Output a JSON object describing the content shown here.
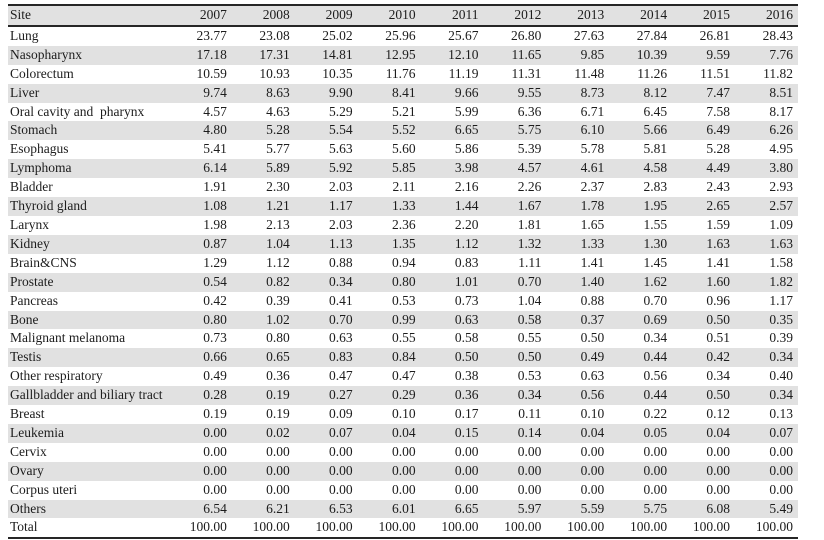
{
  "colors": {
    "stripe_gray": "#e1e1e1",
    "rule_black": "#262626",
    "text": "#1c1c1c",
    "background": "#ffffff"
  },
  "chart_data": {
    "type": "table",
    "title": "",
    "description": "Percentage distribution by cancer site per year",
    "columns": [
      "Site",
      "2007",
      "2008",
      "2009",
      "2010",
      "2011",
      "2012",
      "2013",
      "2014",
      "2015",
      "2016"
    ],
    "rows": [
      {
        "site": "Lung",
        "values": [
          "23.77",
          "23.08",
          "25.02",
          "25.96",
          "25.67",
          "26.80",
          "27.63",
          "27.84",
          "26.81",
          "28.43"
        ]
      },
      {
        "site": "Nasopharynx",
        "values": [
          "17.18",
          "17.31",
          "14.81",
          "12.95",
          "12.10",
          "11.65",
          "9.85",
          "10.39",
          "9.59",
          "7.76"
        ]
      },
      {
        "site": "Colorectum",
        "values": [
          "10.59",
          "10.93",
          "10.35",
          "11.76",
          "11.19",
          "11.31",
          "11.48",
          "11.26",
          "11.51",
          "11.82"
        ]
      },
      {
        "site": "Liver",
        "values": [
          "9.74",
          "8.63",
          "9.90",
          "8.41",
          "9.66",
          "9.55",
          "8.73",
          "8.12",
          "7.47",
          "8.51"
        ]
      },
      {
        "site": "Oral cavity and  pharynx",
        "values": [
          "4.57",
          "4.63",
          "5.29",
          "5.21",
          "5.99",
          "6.36",
          "6.71",
          "6.45",
          "7.58",
          "8.17"
        ]
      },
      {
        "site": "Stomach",
        "values": [
          "4.80",
          "5.28",
          "5.54",
          "5.52",
          "6.65",
          "5.75",
          "6.10",
          "5.66",
          "6.49",
          "6.26"
        ]
      },
      {
        "site": "Esophagus",
        "values": [
          "5.41",
          "5.77",
          "5.63",
          "5.60",
          "5.86",
          "5.39",
          "5.78",
          "5.81",
          "5.28",
          "4.95"
        ]
      },
      {
        "site": "Lymphoma",
        "values": [
          "6.14",
          "5.89",
          "5.92",
          "5.85",
          "3.98",
          "4.57",
          "4.61",
          "4.58",
          "4.49",
          "3.80"
        ]
      },
      {
        "site": "Bladder",
        "values": [
          "1.91",
          "2.30",
          "2.03",
          "2.11",
          "2.16",
          "2.26",
          "2.37",
          "2.83",
          "2.43",
          "2.93"
        ]
      },
      {
        "site": "Thyroid gland",
        "values": [
          "1.08",
          "1.21",
          "1.17",
          "1.33",
          "1.44",
          "1.67",
          "1.78",
          "1.95",
          "2.65",
          "2.57"
        ]
      },
      {
        "site": "Larynx",
        "values": [
          "1.98",
          "2.13",
          "2.03",
          "2.36",
          "2.20",
          "1.81",
          "1.65",
          "1.55",
          "1.59",
          "1.09"
        ]
      },
      {
        "site": "Kidney",
        "values": [
          "0.87",
          "1.04",
          "1.13",
          "1.35",
          "1.12",
          "1.32",
          "1.33",
          "1.30",
          "1.63",
          "1.63"
        ]
      },
      {
        "site": "Brain&CNS",
        "values": [
          "1.29",
          "1.12",
          "0.88",
          "0.94",
          "0.83",
          "1.11",
          "1.41",
          "1.45",
          "1.41",
          "1.58"
        ]
      },
      {
        "site": "Prostate",
        "values": [
          "0.54",
          "0.82",
          "0.34",
          "0.80",
          "1.01",
          "0.70",
          "1.40",
          "1.62",
          "1.60",
          "1.82"
        ]
      },
      {
        "site": "Pancreas",
        "values": [
          "0.42",
          "0.39",
          "0.41",
          "0.53",
          "0.73",
          "1.04",
          "0.88",
          "0.70",
          "0.96",
          "1.17"
        ]
      },
      {
        "site": "Bone",
        "values": [
          "0.80",
          "1.02",
          "0.70",
          "0.99",
          "0.63",
          "0.58",
          "0.37",
          "0.69",
          "0.50",
          "0.35"
        ]
      },
      {
        "site": "Malignant melanoma",
        "values": [
          "0.73",
          "0.80",
          "0.63",
          "0.55",
          "0.58",
          "0.55",
          "0.50",
          "0.34",
          "0.51",
          "0.39"
        ]
      },
      {
        "site": "Testis",
        "values": [
          "0.66",
          "0.65",
          "0.83",
          "0.84",
          "0.50",
          "0.50",
          "0.49",
          "0.44",
          "0.42",
          "0.34"
        ]
      },
      {
        "site": "Other respiratory",
        "values": [
          "0.49",
          "0.36",
          "0.47",
          "0.47",
          "0.38",
          "0.53",
          "0.63",
          "0.56",
          "0.34",
          "0.40"
        ]
      },
      {
        "site": "Gallbladder and biliary tract",
        "values": [
          "0.28",
          "0.19",
          "0.27",
          "0.29",
          "0.36",
          "0.34",
          "0.56",
          "0.44",
          "0.50",
          "0.34"
        ]
      },
      {
        "site": "Breast",
        "values": [
          "0.19",
          "0.19",
          "0.09",
          "0.10",
          "0.17",
          "0.11",
          "0.10",
          "0.22",
          "0.12",
          "0.13"
        ]
      },
      {
        "site": "Leukemia",
        "values": [
          "0.00",
          "0.02",
          "0.07",
          "0.04",
          "0.15",
          "0.14",
          "0.04",
          "0.05",
          "0.04",
          "0.07"
        ]
      },
      {
        "site": "Cervix",
        "values": [
          "0.00",
          "0.00",
          "0.00",
          "0.00",
          "0.00",
          "0.00",
          "0.00",
          "0.00",
          "0.00",
          "0.00"
        ]
      },
      {
        "site": "Ovary",
        "values": [
          "0.00",
          "0.00",
          "0.00",
          "0.00",
          "0.00",
          "0.00",
          "0.00",
          "0.00",
          "0.00",
          "0.00"
        ]
      },
      {
        "site": "Corpus uteri",
        "values": [
          "0.00",
          "0.00",
          "0.00",
          "0.00",
          "0.00",
          "0.00",
          "0.00",
          "0.00",
          "0.00",
          "0.00"
        ]
      },
      {
        "site": "Others",
        "values": [
          "6.54",
          "6.21",
          "6.53",
          "6.01",
          "6.65",
          "5.97",
          "5.59",
          "5.75",
          "6.08",
          "5.49"
        ]
      },
      {
        "site": "Total",
        "values": [
          "100.00",
          "100.00",
          "100.00",
          "100.00",
          "100.00",
          "100.00",
          "100.00",
          "100.00",
          "100.00",
          "100.00"
        ]
      }
    ]
  }
}
